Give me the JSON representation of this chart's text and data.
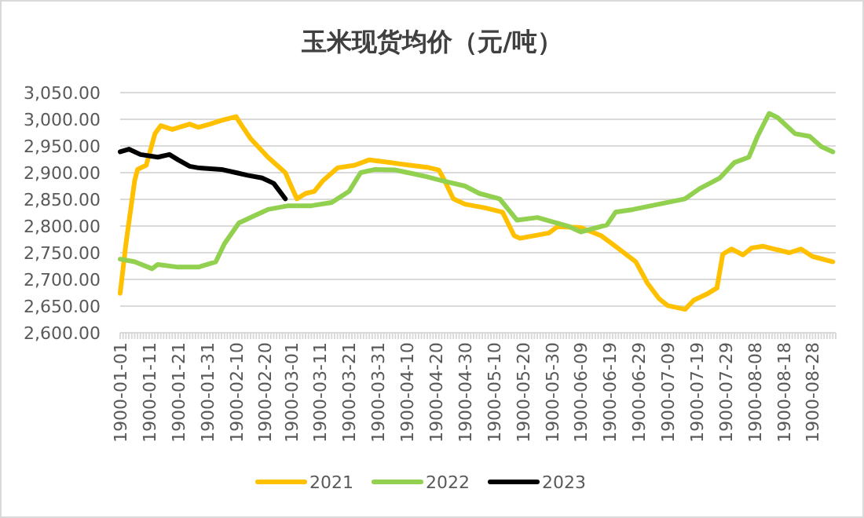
{
  "chart_data": {
    "type": "line",
    "title": "玉米现货均价（元/吨）",
    "xlim": [
      "1900-01-01",
      "1900-09-05"
    ],
    "xticks": [
      "1900-01-01",
      "1900-01-11",
      "1900-01-21",
      "1900-01-31",
      "1900-02-10",
      "1900-02-20",
      "1900-03-01",
      "1900-03-11",
      "1900-03-21",
      "1900-03-31",
      "1900-04-10",
      "1900-04-20",
      "1900-04-30",
      "1900-05-10",
      "1900-05-20",
      "1900-05-30",
      "1900-06-09",
      "1900-06-19",
      "1900-06-29",
      "1900-07-09",
      "1900-07-19",
      "1900-07-29",
      "1900-08-08",
      "1900-08-18",
      "1900-08-28"
    ],
    "ylim": [
      2600,
      3050
    ],
    "yticks": [
      {
        "value": 2600,
        "label": "2,600.00"
      },
      {
        "value": 2650,
        "label": "2,650.00"
      },
      {
        "value": 2700,
        "label": "2,700.00"
      },
      {
        "value": 2750,
        "label": "2,750.00"
      },
      {
        "value": 2800,
        "label": "2,800.00"
      },
      {
        "value": 2850,
        "label": "2,850.00"
      },
      {
        "value": 2900,
        "label": "2,900.00"
      },
      {
        "value": 2950,
        "label": "2,950.00"
      },
      {
        "value": 3000,
        "label": "3,000.00"
      },
      {
        "value": 3050,
        "label": "3,050.00"
      }
    ],
    "grid": "y",
    "legend": "bottom",
    "marker": "none",
    "line_style": "solid",
    "series": [
      {
        "name": "2021",
        "color": "#ffc000",
        "x": [
          "1900-01-01",
          "1900-01-03",
          "1900-01-06",
          "1900-01-07",
          "1900-01-10",
          "1900-01-13",
          "1900-01-15",
          "1900-01-19",
          "1900-01-25",
          "1900-01-28",
          "1900-02-01",
          "1900-02-05",
          "1900-02-10",
          "1900-02-12",
          "1900-02-15",
          "1900-02-21",
          "1900-02-27",
          "1900-03-01",
          "1900-03-03",
          "1900-03-06",
          "1900-03-09",
          "1900-03-12",
          "1900-03-17",
          "1900-03-23",
          "1900-03-28",
          "1900-04-04",
          "1900-04-11",
          "1900-04-17",
          "1900-04-21",
          "1900-04-23",
          "1900-04-26",
          "1900-04-30",
          "1900-05-07",
          "1900-05-13",
          "1900-05-17",
          "1900-05-19",
          "1900-05-29",
          "1900-06-01",
          "1900-06-09",
          "1900-06-16",
          "1900-06-21",
          "1900-06-28",
          "1900-07-02",
          "1900-07-06",
          "1900-07-09",
          "1900-07-15",
          "1900-07-18",
          "1900-07-23",
          "1900-07-26",
          "1900-07-28",
          "1900-07-31",
          "1900-08-04",
          "1900-08-07",
          "1900-08-11",
          "1900-08-20",
          "1900-08-24",
          "1900-08-28",
          "1900-09-04"
        ],
        "values": [
          2674,
          2767,
          2885,
          2906,
          2914,
          2973,
          2988,
          2981,
          2991,
          2985,
          2991,
          2998,
          3005,
          2988,
          2964,
          2929,
          2900,
          2875,
          2851,
          2861,
          2865,
          2885,
          2909,
          2914,
          2924,
          2919,
          2914,
          2910,
          2905,
          2885,
          2851,
          2841,
          2834,
          2826,
          2782,
          2777,
          2787,
          2799,
          2797,
          2782,
          2762,
          2733,
          2693,
          2664,
          2651,
          2644,
          2661,
          2674,
          2684,
          2747,
          2757,
          2746,
          2759,
          2762,
          2750,
          2757,
          2743,
          2733
        ]
      },
      {
        "name": "2022",
        "color": "#92d050",
        "x": [
          "1900-01-01",
          "1900-01-06",
          "1900-01-12",
          "1900-01-14",
          "1900-01-21",
          "1900-01-28",
          "1900-02-03",
          "1900-02-06",
          "1900-02-11",
          "1900-02-17",
          "1900-02-21",
          "1900-02-28",
          "1900-03-08",
          "1900-03-15",
          "1900-03-21",
          "1900-03-25",
          "1900-03-30",
          "1900-04-06",
          "1900-04-13",
          "1900-04-17",
          "1900-04-22",
          "1900-04-30",
          "1900-05-05",
          "1900-05-12",
          "1900-05-18",
          "1900-05-25",
          "1900-06-05",
          "1900-06-09",
          "1900-06-18",
          "1900-06-21",
          "1900-06-27",
          "1900-07-06",
          "1900-07-15",
          "1900-07-20",
          "1900-07-27",
          "1900-08-01",
          "1900-08-06",
          "1900-08-09",
          "1900-08-13",
          "1900-08-16",
          "1900-08-22",
          "1900-08-27",
          "1900-08-31",
          "1900-09-04"
        ],
        "values": [
          2738,
          2733,
          2720,
          2728,
          2723,
          2723,
          2733,
          2767,
          2806,
          2821,
          2831,
          2838,
          2838,
          2844,
          2865,
          2900,
          2906,
          2905,
          2897,
          2892,
          2885,
          2875,
          2861,
          2851,
          2811,
          2816,
          2799,
          2789,
          2802,
          2826,
          2831,
          2841,
          2851,
          2870,
          2890,
          2919,
          2929,
          2968,
          3011,
          3003,
          2973,
          2968,
          2949,
          2939
        ]
      },
      {
        "name": "2023",
        "color": "#000000",
        "x": [
          "1900-01-01",
          "1900-01-04",
          "1900-01-08",
          "1900-01-14",
          "1900-01-18",
          "1900-01-21",
          "1900-01-25",
          "1900-01-28",
          "1900-02-05",
          "1900-02-10",
          "1900-02-14",
          "1900-02-19",
          "1900-02-23",
          "1900-02-27"
        ],
        "values": [
          2939,
          2944,
          2934,
          2929,
          2934,
          2924,
          2912,
          2909,
          2906,
          2900,
          2895,
          2890,
          2880,
          2851
        ]
      }
    ]
  }
}
